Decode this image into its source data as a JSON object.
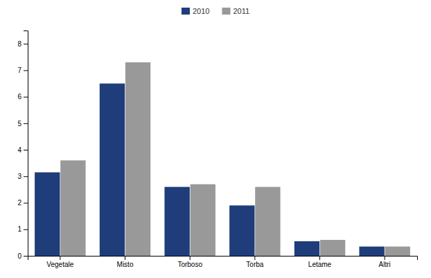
{
  "chart_data": {
    "type": "bar",
    "categories": [
      "Vegetale",
      "Misto",
      "Torboso",
      "Torba",
      "Letame",
      "Altri"
    ],
    "series": [
      {
        "name": "2010",
        "color": "#1f3d7a",
        "values": [
          3.15,
          6.5,
          2.6,
          1.9,
          0.55,
          0.35
        ]
      },
      {
        "name": "2011",
        "color": "#999999",
        "values": [
          3.6,
          7.3,
          2.7,
          2.6,
          0.6,
          0.35
        ]
      }
    ],
    "ylim": [
      0,
      8.5
    ],
    "yticks": [
      0,
      1,
      2,
      3,
      4,
      5,
      6,
      7,
      8
    ],
    "grid": false,
    "legend": "top"
  }
}
